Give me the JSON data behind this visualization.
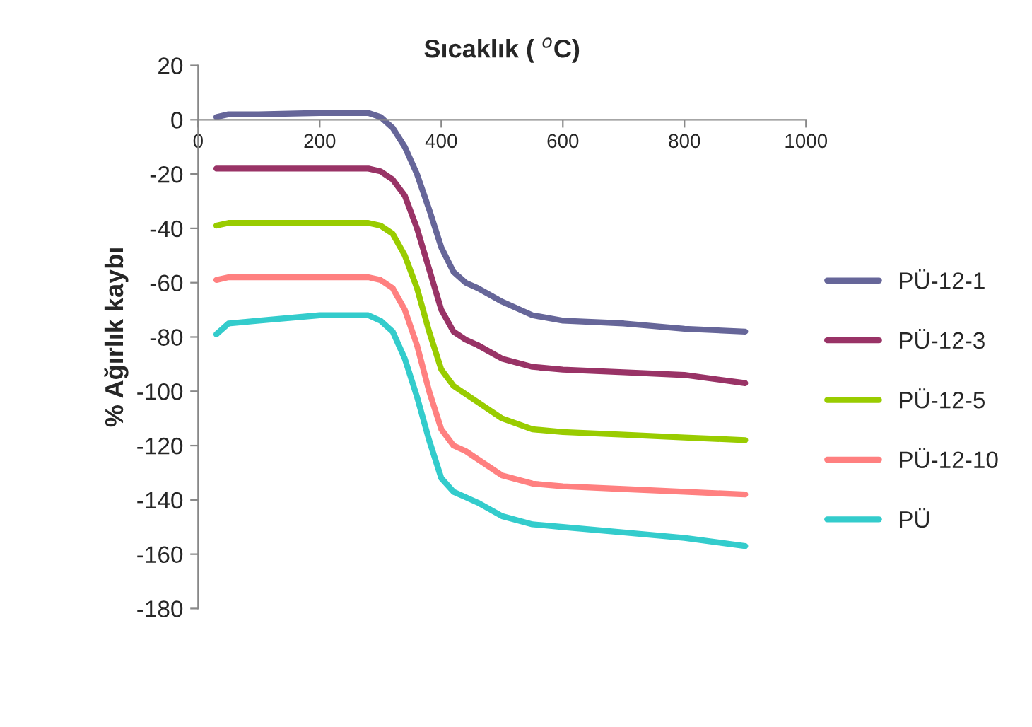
{
  "chart_data": {
    "type": "line",
    "xlabel": "Sıcaklık ( $^{o}$C)",
    "ylabel": "% Ağırlık kaybı",
    "x": [
      30,
      50,
      100,
      200,
      280,
      300,
      320,
      340,
      360,
      380,
      400,
      420,
      440,
      460,
      500,
      550,
      600,
      700,
      800,
      900
    ],
    "xlim": [
      0,
      1000
    ],
    "xticks": [
      0,
      200,
      400,
      600,
      800,
      1000
    ],
    "ylim": [
      -180,
      20
    ],
    "yticks": [
      -180,
      -160,
      -140,
      -120,
      -100,
      -80,
      -60,
      -40,
      -20,
      0,
      20
    ],
    "grid": false,
    "legend": "right",
    "marker": "none",
    "line_style": "solid",
    "series": [
      {
        "name": "PÜ-12-1",
        "color": "#666699",
        "values": [
          1,
          2,
          2,
          2.5,
          2.5,
          1,
          -3,
          -10,
          -20,
          -33,
          -47,
          -56,
          -60,
          -62,
          -67,
          -72,
          -74,
          -75,
          -77,
          -78
        ]
      },
      {
        "name": "PÜ-12-3",
        "color": "#993366",
        "values": [
          -18,
          -18,
          -18,
          -18,
          -18,
          -19,
          -22,
          -28,
          -40,
          -55,
          -70,
          -78,
          -81,
          -83,
          -88,
          -91,
          -92,
          -93,
          -94,
          -97
        ]
      },
      {
        "name": "PÜ-12-5",
        "color": "#99cc00",
        "values": [
          -39,
          -38,
          -38,
          -38,
          -38,
          -39,
          -42,
          -50,
          -62,
          -78,
          -92,
          -98,
          -101,
          -104,
          -110,
          -114,
          -115,
          -116,
          -117,
          -118
        ]
      },
      {
        "name": "PÜ-12-10",
        "color": "#ff8080",
        "values": [
          -59,
          -58,
          -58,
          -58,
          -58,
          -59,
          -62,
          -70,
          -83,
          -100,
          -114,
          -120,
          -122,
          -125,
          -131,
          -134,
          -135,
          -136,
          -137,
          -138
        ]
      },
      {
        "name": "PÜ",
        "color": "#33cccc",
        "values": [
          -79,
          -75,
          -74,
          -72,
          -72,
          -74,
          -78,
          -88,
          -102,
          -118,
          -132,
          -137,
          -139,
          -141,
          -146,
          -149,
          -150,
          -152,
          -154,
          -157
        ]
      }
    ]
  }
}
